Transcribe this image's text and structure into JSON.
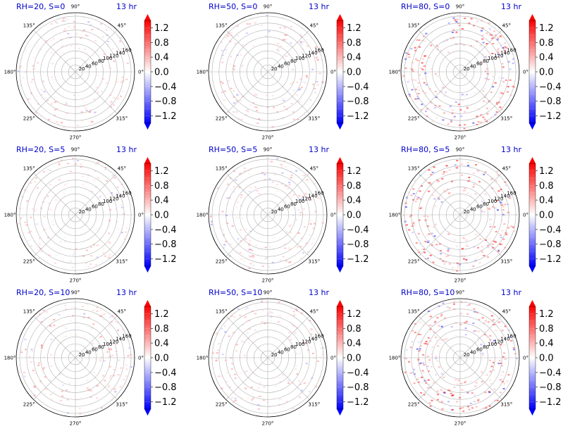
{
  "figure": {
    "time_label": "13 hr",
    "colors": {
      "title": "#0000cc",
      "grid": "#b0b0b0",
      "axis": "#000000",
      "cmap_neg": "#0000ff",
      "cmap_mid": "#ffffff",
      "cmap_pos": "#ff0000"
    },
    "angle_labels": [
      "0°",
      "45°",
      "90°",
      "135°",
      "180°",
      "225°",
      "270°",
      "315°"
    ],
    "radial_labels": [
      "20",
      "40",
      "60",
      "80",
      "100",
      "120",
      "140",
      "160"
    ],
    "colorbar_ticks": [
      "1.2",
      "0.8",
      "0.4",
      "0.0",
      "−0.4",
      "−0.8",
      "−1.2"
    ]
  },
  "chart_data": [
    {
      "type": "heatmap",
      "projection": "polar",
      "title": "RH=20, S=0",
      "annotation": "13 hr",
      "r_range": [
        0,
        170
      ],
      "theta_ticks_deg": [
        0,
        45,
        90,
        135,
        180,
        225,
        270,
        315
      ],
      "r_ticks": [
        20,
        40,
        60,
        80,
        100,
        120,
        140,
        160
      ],
      "color_range": [
        -1.4,
        1.4
      ],
      "colorbar_ticks": [
        1.2,
        0.8,
        0.4,
        0.0,
        -0.4,
        -0.8,
        -1.2
      ],
      "colorbar_extend": "both",
      "intensity": 0.25
    },
    {
      "type": "heatmap",
      "projection": "polar",
      "title": "RH=50, S=0",
      "annotation": "13 hr",
      "r_range": [
        0,
        170
      ],
      "theta_ticks_deg": [
        0,
        45,
        90,
        135,
        180,
        225,
        270,
        315
      ],
      "r_ticks": [
        20,
        40,
        60,
        80,
        100,
        120,
        140,
        160
      ],
      "color_range": [
        -1.4,
        1.4
      ],
      "colorbar_ticks": [
        1.2,
        0.8,
        0.4,
        0.0,
        -0.4,
        -0.8,
        -1.2
      ],
      "colorbar_extend": "both",
      "intensity": 0.3
    },
    {
      "type": "heatmap",
      "projection": "polar",
      "title": "RH=80, S=0",
      "annotation": "13 hr",
      "r_range": [
        0,
        170
      ],
      "theta_ticks_deg": [
        0,
        45,
        90,
        135,
        180,
        225,
        270,
        315
      ],
      "r_ticks": [
        20,
        40,
        60,
        80,
        100,
        120,
        140,
        160
      ],
      "color_range": [
        -1.4,
        1.4
      ],
      "colorbar_ticks": [
        1.2,
        0.8,
        0.4,
        0.0,
        -0.4,
        -0.8,
        -1.2
      ],
      "colorbar_extend": "both",
      "intensity": 0.6
    },
    {
      "type": "heatmap",
      "projection": "polar",
      "title": "RH=20, S=5",
      "annotation": "13 hr",
      "r_range": [
        0,
        170
      ],
      "theta_ticks_deg": [
        0,
        45,
        90,
        135,
        180,
        225,
        270,
        315
      ],
      "r_ticks": [
        20,
        40,
        60,
        80,
        100,
        120,
        140,
        160
      ],
      "color_range": [
        -1.4,
        1.4
      ],
      "colorbar_ticks": [
        1.2,
        0.8,
        0.4,
        0.0,
        -0.4,
        -0.8,
        -1.2
      ],
      "colorbar_extend": "both",
      "intensity": 0.25
    },
    {
      "type": "heatmap",
      "projection": "polar",
      "title": "RH=50, S=5",
      "annotation": "13 hr",
      "r_range": [
        0,
        170
      ],
      "theta_ticks_deg": [
        0,
        45,
        90,
        135,
        180,
        225,
        270,
        315
      ],
      "r_ticks": [
        20,
        40,
        60,
        80,
        100,
        120,
        140,
        160
      ],
      "color_range": [
        -1.4,
        1.4
      ],
      "colorbar_ticks": [
        1.2,
        0.8,
        0.4,
        0.0,
        -0.4,
        -0.8,
        -1.2
      ],
      "colorbar_extend": "both",
      "intensity": 0.3
    },
    {
      "type": "heatmap",
      "projection": "polar",
      "title": "RH=80, S=5",
      "annotation": "13 hr",
      "r_range": [
        0,
        170
      ],
      "theta_ticks_deg": [
        0,
        45,
        90,
        135,
        180,
        225,
        270,
        315
      ],
      "r_ticks": [
        20,
        40,
        60,
        80,
        100,
        120,
        140,
        160
      ],
      "color_range": [
        -1.4,
        1.4
      ],
      "colorbar_ticks": [
        1.2,
        0.8,
        0.4,
        0.0,
        -0.4,
        -0.8,
        -1.2
      ],
      "colorbar_extend": "both",
      "intensity": 0.6
    },
    {
      "type": "heatmap",
      "projection": "polar",
      "title": "RH=20, S=10",
      "annotation": "13 hr",
      "r_range": [
        0,
        170
      ],
      "theta_ticks_deg": [
        0,
        45,
        90,
        135,
        180,
        225,
        270,
        315
      ],
      "r_ticks": [
        20,
        40,
        60,
        80,
        100,
        120,
        140,
        160
      ],
      "color_range": [
        -1.4,
        1.4
      ],
      "colorbar_ticks": [
        1.2,
        0.8,
        0.4,
        0.0,
        -0.4,
        -0.8,
        -1.2
      ],
      "colorbar_extend": "both",
      "intensity": 0.3
    },
    {
      "type": "heatmap",
      "projection": "polar",
      "title": "RH=50, S=10",
      "annotation": "13 hr",
      "r_range": [
        0,
        170
      ],
      "theta_ticks_deg": [
        0,
        45,
        90,
        135,
        180,
        225,
        270,
        315
      ],
      "r_ticks": [
        20,
        40,
        60,
        80,
        100,
        120,
        140,
        160
      ],
      "color_range": [
        -1.4,
        1.4
      ],
      "colorbar_ticks": [
        1.2,
        0.8,
        0.4,
        0.0,
        -0.4,
        -0.8,
        -1.2
      ],
      "colorbar_extend": "both",
      "intensity": 0.3
    },
    {
      "type": "heatmap",
      "projection": "polar",
      "title": "RH=80, S=10",
      "annotation": "13 hr",
      "r_range": [
        0,
        170
      ],
      "theta_ticks_deg": [
        0,
        45,
        90,
        135,
        180,
        225,
        270,
        315
      ],
      "r_ticks": [
        20,
        40,
        60,
        80,
        100,
        120,
        140,
        160
      ],
      "color_range": [
        -1.4,
        1.4
      ],
      "colorbar_ticks": [
        1.2,
        0.8,
        0.4,
        0.0,
        -0.4,
        -0.8,
        -1.2
      ],
      "colorbar_extend": "both",
      "intensity": 0.6
    }
  ]
}
